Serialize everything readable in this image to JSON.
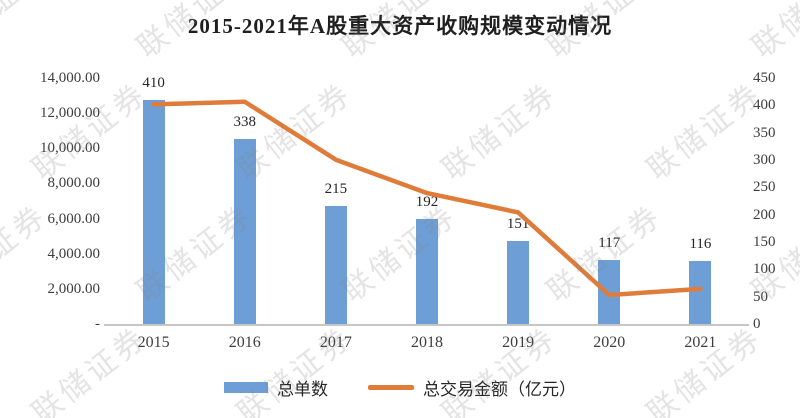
{
  "title": "2015-2021年A股重大资产收购规模变动情况",
  "watermark": {
    "text": "联储证券"
  },
  "legend": {
    "bar_label": "总单数",
    "line_label": "总交易金额（亿元）"
  },
  "colors": {
    "bar": "#6D9ED6",
    "line": "#E07C3A",
    "axis_line": "#C6C6C6",
    "watermark": "rgba(130,130,130,0.22)"
  },
  "chart_data": {
    "type": "combo-bar-line",
    "title": "2015-2021年A股重大资产收购规模变动情况",
    "categories": [
      "2015",
      "2016",
      "2017",
      "2018",
      "2019",
      "2020",
      "2021"
    ],
    "series": [
      {
        "name": "总单数",
        "type": "bar",
        "axis": "right",
        "color": "#6D9ED6",
        "values": [
          410,
          338,
          215,
          192,
          151,
          117,
          116
        ],
        "data_labels": [
          "410",
          "338",
          "215",
          "192",
          "151",
          "117",
          "116"
        ]
      },
      {
        "name": "总交易金额（亿元）",
        "type": "line",
        "axis": "left",
        "color": "#E07C3A",
        "values": [
          12500,
          12650,
          9350,
          7450,
          6350,
          1650,
          2000
        ]
      }
    ],
    "left_axis": {
      "min": 0,
      "max": 14000,
      "tick_labels": [
        "14,000.00",
        "12,000.00",
        "10,000.00",
        "8,000.00",
        "6,000.00",
        "4,000.00",
        "2,000.00",
        "-"
      ],
      "tick_values": [
        14000,
        12000,
        10000,
        8000,
        6000,
        4000,
        2000,
        0
      ]
    },
    "right_axis": {
      "min": 0,
      "max": 450,
      "tick_labels": [
        "450",
        "400",
        "350",
        "300",
        "250",
        "200",
        "150",
        "100",
        "50",
        "0"
      ],
      "tick_values": [
        450,
        400,
        350,
        300,
        250,
        200,
        150,
        100,
        50,
        0
      ]
    },
    "legend_position": "bottom",
    "grid": false
  }
}
